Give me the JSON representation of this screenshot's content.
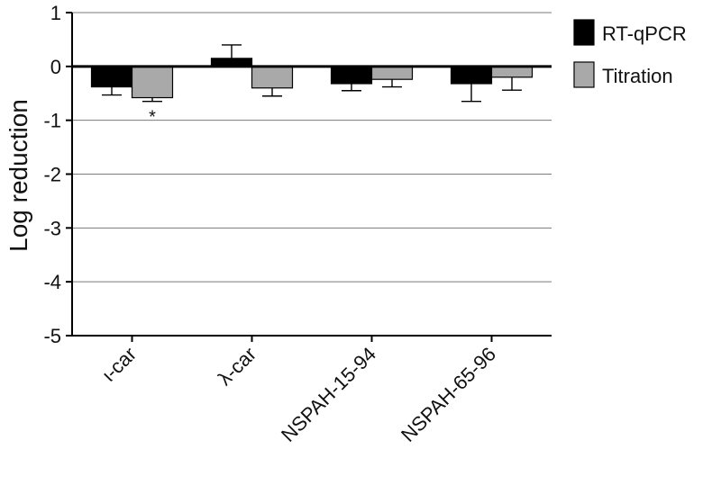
{
  "chart_data": {
    "type": "bar",
    "title": "",
    "xlabel": "",
    "ylabel": "Log reduction",
    "ylim": [
      -5,
      1
    ],
    "yticks": [
      1,
      0,
      -1,
      -2,
      -3,
      -4,
      -5
    ],
    "grid": true,
    "legend_position": "top-right",
    "categories": [
      "ι-car",
      "λ-car",
      "NSPAH-15-94",
      "NSPAH-65-96"
    ],
    "series": [
      {
        "name": "RT-qPCR",
        "color": "#000000",
        "values": [
          -0.38,
          0.15,
          -0.32,
          -0.32
        ],
        "errors": [
          0.15,
          0.25,
          0.13,
          0.33
        ]
      },
      {
        "name": "Titration",
        "color": "#a9a9a9",
        "values": [
          -0.58,
          -0.4,
          -0.24,
          -0.2
        ],
        "errors": [
          0.07,
          0.15,
          0.14,
          0.24
        ]
      }
    ],
    "annotations": [
      {
        "text": "*",
        "category": 0,
        "series": 1
      }
    ]
  }
}
